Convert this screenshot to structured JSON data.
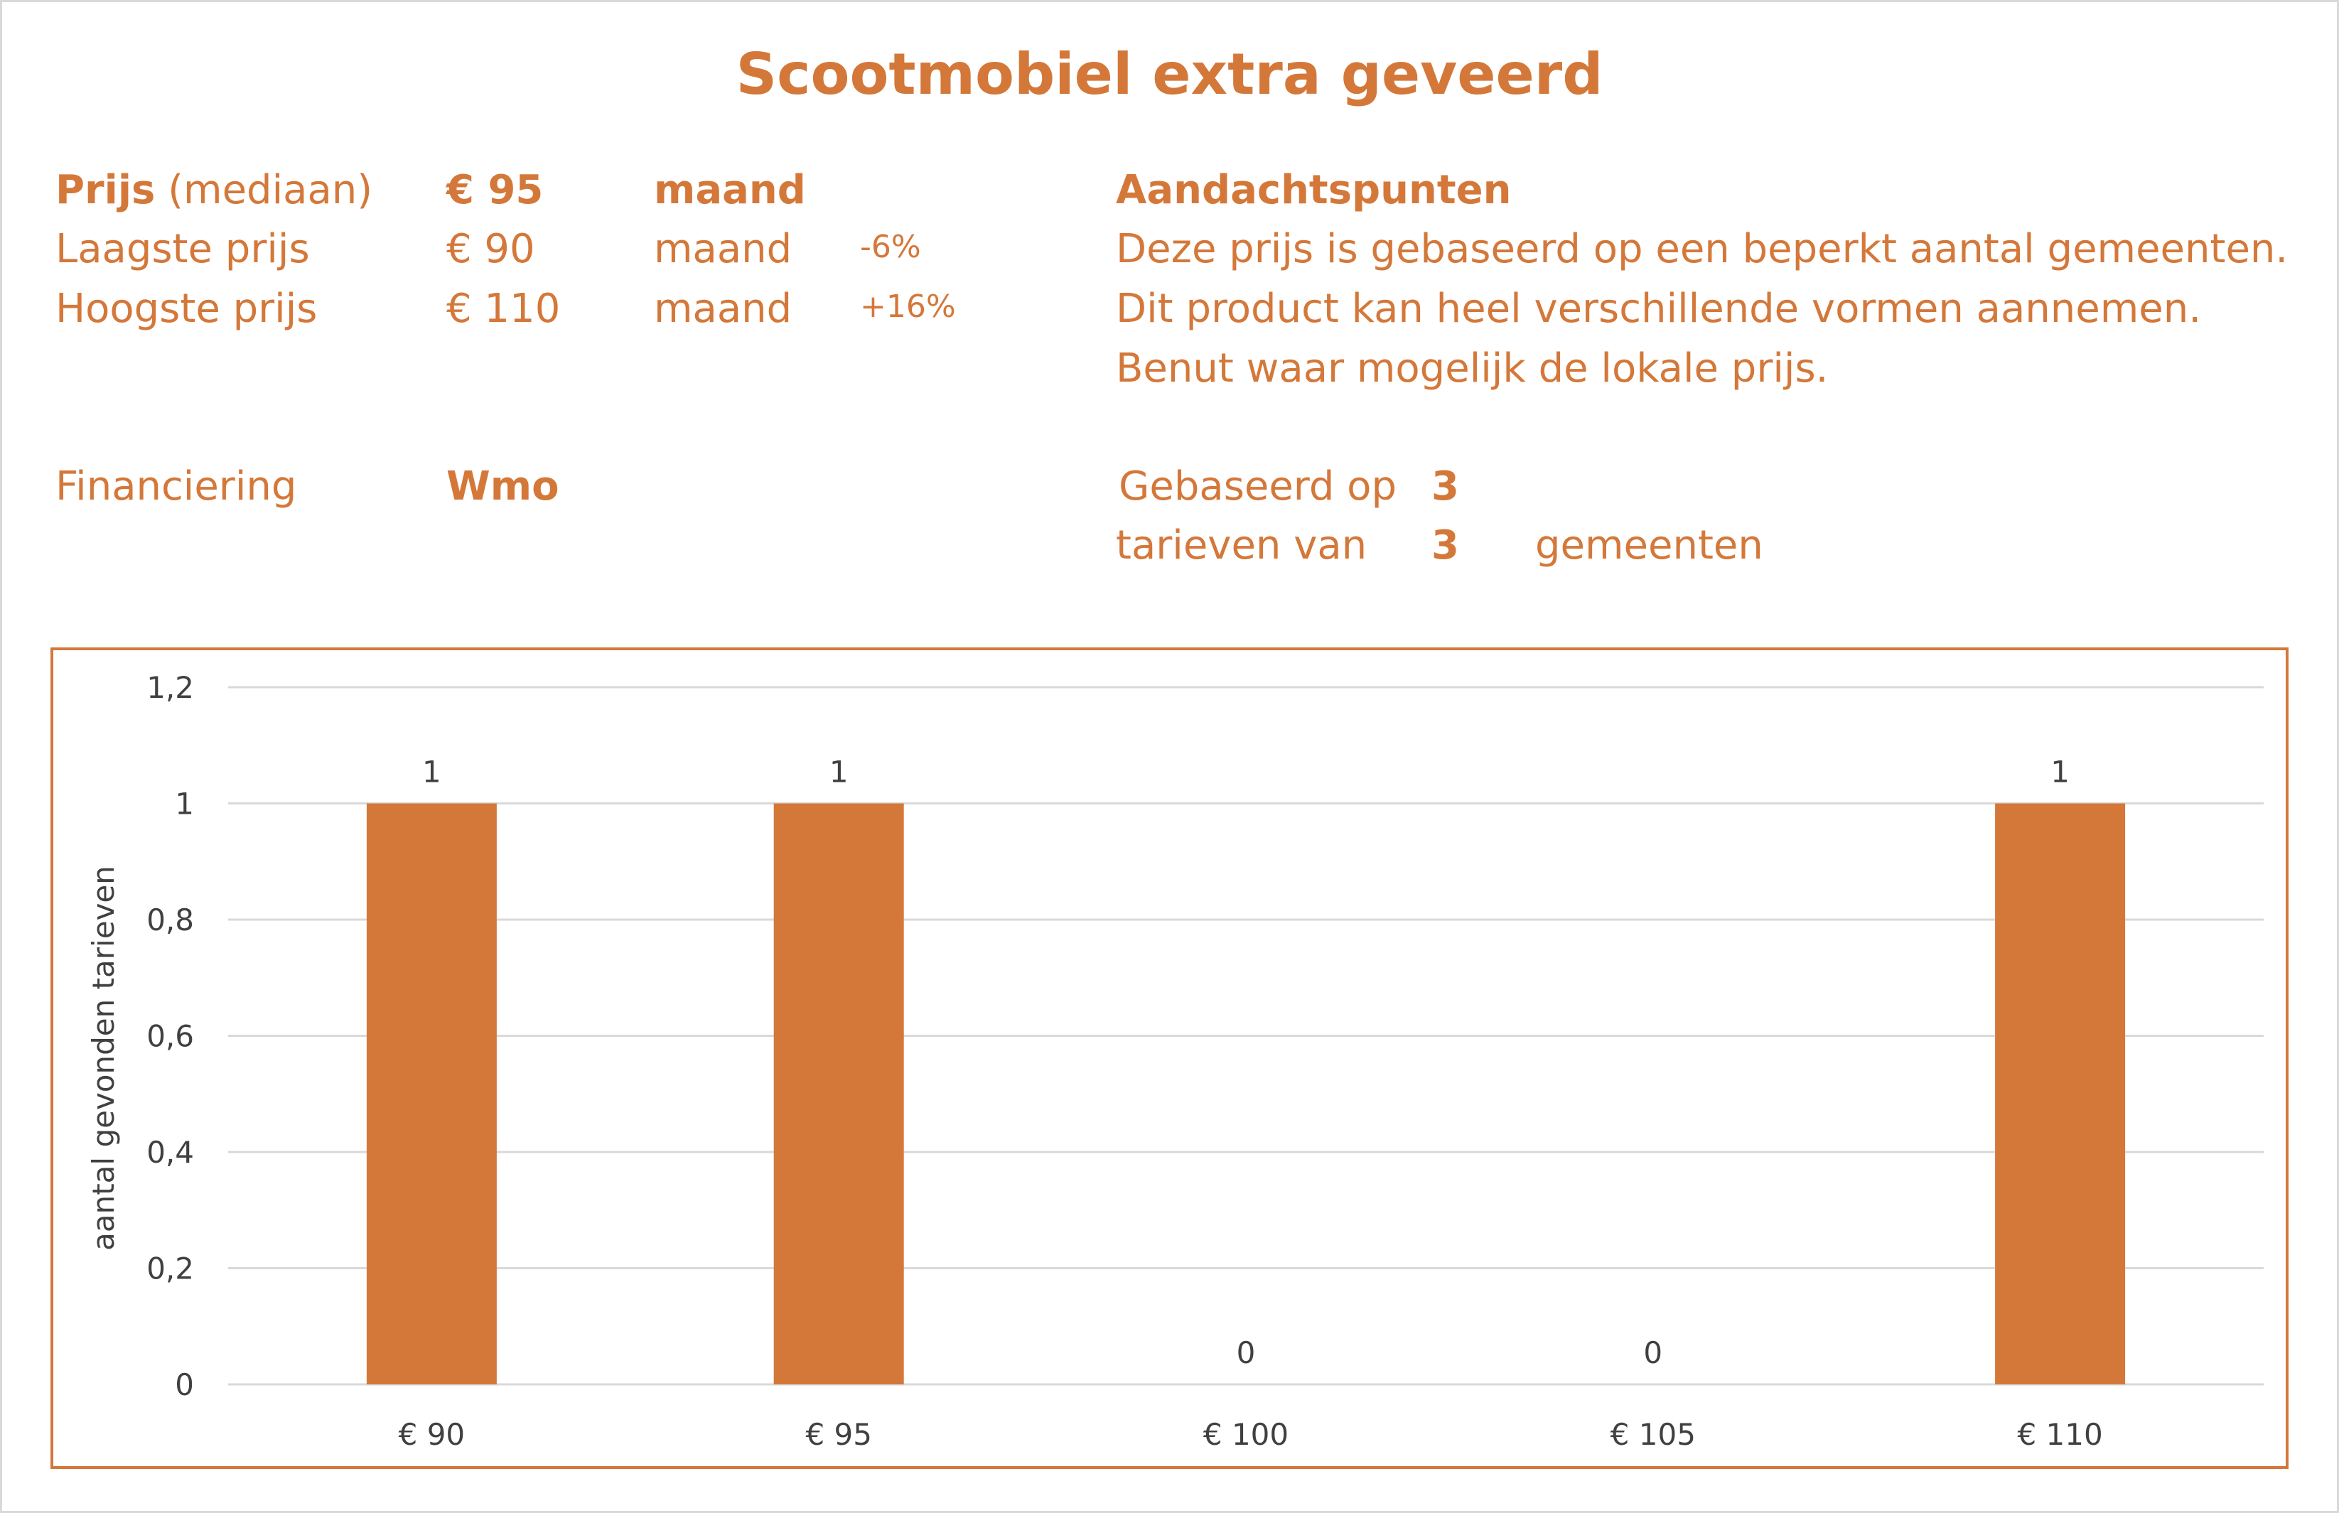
{
  "title": "Scootmobiel extra geveerd",
  "price": {
    "median": {
      "label_bold": "Prijs",
      "label_rest": " (mediaan)",
      "value": "€ 95",
      "unit": "maand"
    },
    "low": {
      "label": "Laagste prijs",
      "value": "€ 90",
      "unit": "maand",
      "delta": "-6%"
    },
    "high": {
      "label": "Hoogste prijs",
      "value": "€ 110",
      "unit": "maand",
      "delta": "+16%"
    }
  },
  "notes": {
    "heading": "Aandachtspunten",
    "lines": [
      "Deze prijs is gebaseerd op een beperkt aantal gemeenten.",
      "Dit product kan heel verschillende vormen aannemen.",
      "Benut waar mogelijk de lokale prijs."
    ]
  },
  "financing": {
    "label": "Financiering",
    "value": "Wmo"
  },
  "basis": {
    "line1_label": "Gebaseerd op",
    "line1_value": "3",
    "line2_label": "tarieven van",
    "line2_value": "3",
    "line2_suffix": "gemeenten"
  },
  "colors": {
    "accent": "#d4783a",
    "bar": "#d4783a",
    "grid": "#d9d9d9",
    "axis_text": "#404040"
  },
  "chart_data": {
    "type": "bar",
    "categories": [
      "€ 90",
      "€ 95",
      "€ 100",
      "€ 105",
      "€ 110"
    ],
    "values": [
      1,
      1,
      0,
      0,
      1
    ],
    "data_labels": [
      "1",
      "1",
      "0",
      "0",
      "1"
    ],
    "ylabel": "aantal gevonden tarieven",
    "ylim": [
      0,
      1.2
    ],
    "yticks": [
      "0",
      "0,2",
      "0,4",
      "0,6",
      "0,8",
      "1",
      "1,2"
    ],
    "grid": true
  }
}
